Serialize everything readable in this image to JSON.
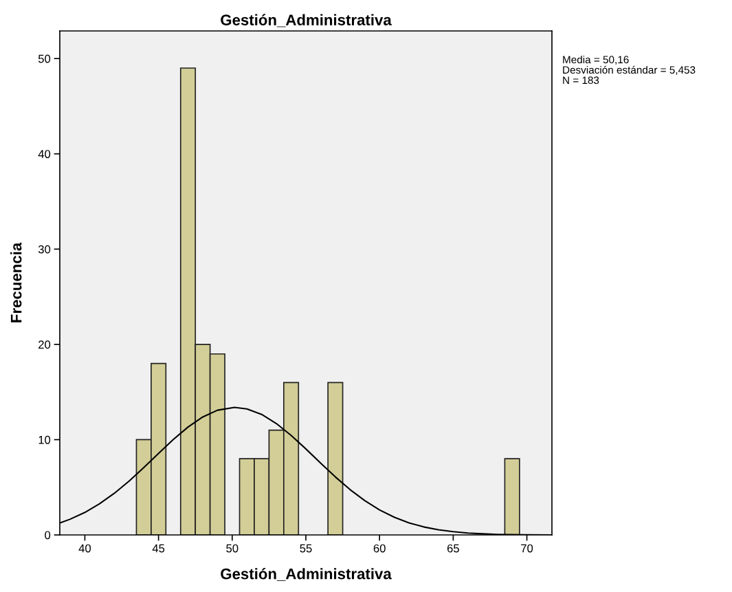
{
  "chart_data": {
    "type": "histogram",
    "title": "Gestión_Administrativa",
    "xlabel": "Gestión_Administrativa",
    "ylabel": "Frecuencia",
    "bins": [
      43.5,
      44.5,
      45.5,
      46.5,
      47.5,
      48.5,
      49.5,
      50.5,
      51.5,
      52.5,
      53.5,
      54.5,
      55.5,
      56.5,
      57.5,
      58.5,
      59.5,
      60.5,
      61.5,
      62.5,
      63.5,
      64.5,
      65.5,
      66.5,
      67.5,
      68.5,
      69.5
    ],
    "values": [
      10,
      18,
      0,
      49,
      20,
      19,
      0,
      8,
      8,
      11,
      16,
      0,
      0,
      16,
      0,
      0,
      0,
      0,
      0,
      0,
      0,
      0,
      0,
      0,
      0,
      8
    ],
    "color": "#d3ce97",
    "series": [
      {
        "type": "line",
        "color": "#000000",
        "x": [
          38.3,
          39,
          40,
          41,
          42,
          43,
          44,
          45,
          46,
          47,
          48,
          49,
          50.16,
          51,
          52,
          53,
          54,
          55,
          56,
          57,
          58,
          59,
          60,
          61,
          62,
          63,
          64,
          65,
          66,
          67,
          68,
          69,
          70,
          71.7
        ],
        "values": [
          1.26,
          1.65,
          2.36,
          3.27,
          4.37,
          5.65,
          7.07,
          8.55,
          10.01,
          11.32,
          12.38,
          13.09,
          13.39,
          13.23,
          12.65,
          11.69,
          10.45,
          9.03,
          7.55,
          6.09,
          4.76,
          3.6,
          2.63,
          1.86,
          1.27,
          0.84,
          0.54,
          0.34,
          0.2,
          0.12,
          0.06,
          0.03,
          0.01,
          0.0
        ]
      }
    ],
    "xlim": [
      38.3,
      71.7
    ],
    "ylim": [
      0,
      52.9
    ],
    "xticks": [
      40,
      45,
      50,
      55,
      60,
      65,
      70
    ],
    "yticks": [
      0,
      10,
      20,
      30,
      40,
      50
    ],
    "grid": false,
    "legend": false,
    "annotations": [
      "Media = 50,16",
      "Desviación estándar = 5,453",
      "N = 183"
    ]
  }
}
